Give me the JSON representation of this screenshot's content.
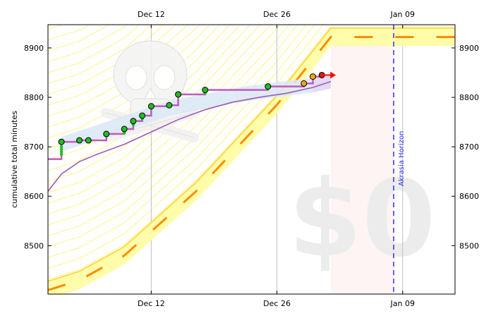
{
  "chart_data": {
    "type": "line",
    "title": "",
    "ylabel": "cumulative total minutes",
    "xlabel": "",
    "x_range": [
      "2015-11-30T12:00",
      "2016-01-14T20:00"
    ],
    "ylim": [
      8402,
      8947
    ],
    "x_ticks": [
      {
        "date": "2015-12-12",
        "label": "Dec 12"
      },
      {
        "date": "2015-12-26",
        "label": "Dec 26"
      },
      {
        "date": "2016-01-09",
        "label": "Jan 09"
      }
    ],
    "y_ticks": [
      8500,
      8600,
      8700,
      8800,
      8900
    ],
    "grid": "vertical lines at x ticks",
    "pledge_text": "$0",
    "akrasia_horizon": {
      "date": "2016-01-08",
      "label": "Akrasia Horizon"
    },
    "datapoints": [
      {
        "date": "2015-12-02",
        "value": 8685
      },
      {
        "date": "2015-12-02",
        "value": 8690
      },
      {
        "date": "2015-12-02",
        "value": 8695
      },
      {
        "date": "2015-12-02",
        "value": 8700
      },
      {
        "date": "2015-12-02",
        "value": 8710
      },
      {
        "date": "2015-12-04",
        "value": 8713
      },
      {
        "date": "2015-12-05",
        "value": 8713
      },
      {
        "date": "2015-12-07",
        "value": 8726
      },
      {
        "date": "2015-12-09",
        "value": 8728
      },
      {
        "date": "2015-12-09",
        "value": 8736
      },
      {
        "date": "2015-12-10",
        "value": 8745
      },
      {
        "date": "2015-12-10",
        "value": 8752
      },
      {
        "date": "2015-12-11",
        "value": 8757
      },
      {
        "date": "2015-12-11",
        "value": 8763
      },
      {
        "date": "2015-12-12",
        "value": 8782
      },
      {
        "date": "2015-12-14",
        "value": 8784
      },
      {
        "date": "2015-12-15",
        "value": 8806
      },
      {
        "date": "2015-12-18",
        "value": 8809
      },
      {
        "date": "2015-12-18",
        "value": 8815
      },
      {
        "date": "2015-12-25",
        "value": 8818
      },
      {
        "date": "2015-12-25",
        "value": 8822
      },
      {
        "date": "2015-12-29",
        "value": 8828
      },
      {
        "date": "2015-12-30",
        "value": 8842
      },
      {
        "date": "2015-12-31",
        "value": 8845
      }
    ],
    "datapoint_colors": [
      "green",
      "green",
      "green",
      "green",
      "green",
      "green",
      "green",
      "green",
      "green",
      "green",
      "green",
      "green",
      "green",
      "green",
      "green",
      "green",
      "green",
      "green",
      "green",
      "green",
      "green",
      "orange",
      "orange",
      "red"
    ],
    "step_line": [
      {
        "date": "2015-11-30T12:00",
        "value": 8675
      },
      {
        "date": "2015-12-02",
        "value": 8675
      },
      {
        "date": "2015-12-02",
        "value": 8710
      },
      {
        "date": "2015-12-04",
        "value": 8713
      },
      {
        "date": "2015-12-05",
        "value": 8713
      },
      {
        "date": "2015-12-07",
        "value": 8726
      },
      {
        "date": "2015-12-09",
        "value": 8736
      },
      {
        "date": "2015-12-10",
        "value": 8752
      },
      {
        "date": "2015-12-11",
        "value": 8763
      },
      {
        "date": "2015-12-12",
        "value": 8782
      },
      {
        "date": "2015-12-14",
        "value": 8784
      },
      {
        "date": "2015-12-15",
        "value": 8806
      },
      {
        "date": "2015-12-18",
        "value": 8815
      },
      {
        "date": "2015-12-25",
        "value": 8822
      },
      {
        "date": "2015-12-29",
        "value": 8828
      },
      {
        "date": "2015-12-30",
        "value": 8842
      },
      {
        "date": "2015-12-31",
        "value": 8845
      }
    ],
    "moving_average": [
      {
        "date": "2015-11-30T12:00",
        "value": 8610
      },
      {
        "date": "2015-12-02",
        "value": 8645
      },
      {
        "date": "2015-12-04",
        "value": 8670
      },
      {
        "date": "2015-12-06",
        "value": 8685
      },
      {
        "date": "2015-12-09",
        "value": 8705
      },
      {
        "date": "2015-12-12",
        "value": 8730
      },
      {
        "date": "2015-12-15",
        "value": 8755
      },
      {
        "date": "2015-12-18",
        "value": 8775
      },
      {
        "date": "2015-12-21",
        "value": 8790
      },
      {
        "date": "2015-12-24",
        "value": 8800
      },
      {
        "date": "2015-12-27",
        "value": 8808
      },
      {
        "date": "2015-12-30",
        "value": 8820
      },
      {
        "date": "2016-01-01",
        "value": 8832
      }
    ],
    "road": [
      {
        "date": "2015-11-30T12:00",
        "value": 8410
      },
      {
        "date": "2015-12-04",
        "value": 8430
      },
      {
        "date": "2015-12-09",
        "value": 8480
      },
      {
        "date": "2015-12-17",
        "value": 8610
      },
      {
        "date": "2015-12-26",
        "value": 8785
      },
      {
        "date": "2016-01-01",
        "value": 8922
      },
      {
        "date": "2016-01-14T20:00",
        "value": 8922
      }
    ],
    "road_width": 18,
    "trend_band": [
      {
        "date": "2015-12-02",
        "value": 8705
      },
      {
        "date": "2015-12-14",
        "value": 8778
      },
      {
        "date": "2015-12-22",
        "value": 8806
      },
      {
        "date": "2015-12-30",
        "value": 8825
      },
      {
        "date": "2016-01-01",
        "value": 8833
      }
    ],
    "trend_band_halfwidth": 15,
    "pink_region": {
      "from": "2016-01-01",
      "to": "2016-01-08"
    },
    "colors": {
      "road_fill": "#fffcaa",
      "road_line": "#ffd84a",
      "road_dash": "#ff8c00",
      "yellow_hatch": "#fff48a",
      "trend_band": "#d9e8f6",
      "trend_band_future": "#e4d8f2",
      "moving_average": "#a05ab4",
      "step_line": "#c05ac0",
      "horizon": "#3030ee",
      "grid": "#c0c0c0",
      "dollar": "#ececec",
      "pink": "#fff4f4",
      "point_green": "#22bb22",
      "point_orange": "#ffa500",
      "point_red": "#ee1111",
      "skull": "#dcdcdc"
    }
  }
}
